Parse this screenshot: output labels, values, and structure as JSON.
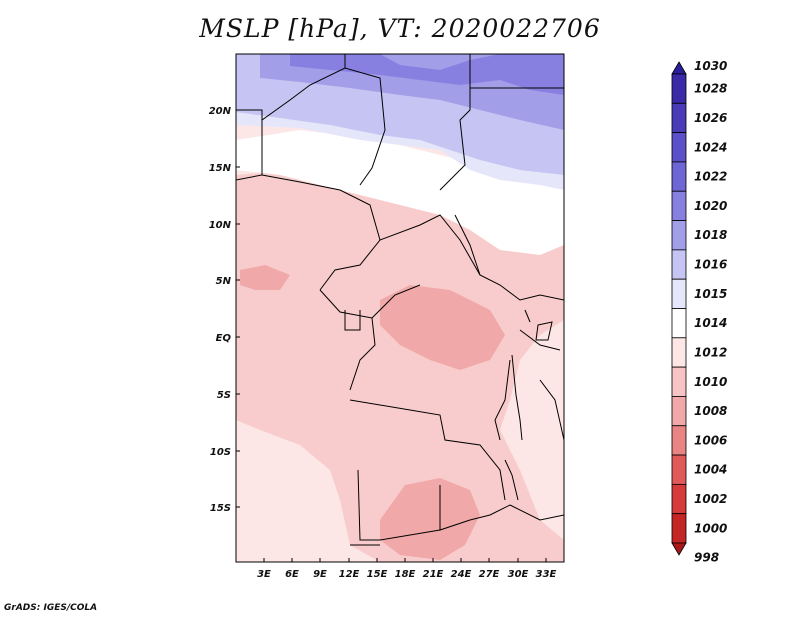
{
  "title": "MSLP [hPa], VT: 2020022706",
  "credit": "GrADS: IGES/COLA",
  "map": {
    "lat_labels": [
      "20N",
      "15N",
      "10N",
      "5N",
      "EQ",
      "5S",
      "10S",
      "15S"
    ],
    "lon_labels": [
      "3E",
      "6E",
      "9E",
      "12E",
      "15E",
      "18E",
      "21E",
      "24E",
      "27E",
      "30E",
      "33E"
    ]
  },
  "colorbar": {
    "levels": [
      "1030",
      "1028",
      "1026",
      "1024",
      "1022",
      "1020",
      "1018",
      "1016",
      "1015",
      "1014",
      "1012",
      "1010",
      "1008",
      "1006",
      "1004",
      "1002",
      "1000",
      "998"
    ],
    "colors": [
      "#2a1e9a",
      "#3a2aa8",
      "#4a3cb8",
      "#5c50c8",
      "#6f66d6",
      "#8880e0",
      "#a39ee8",
      "#c6c4f2",
      "#e6e6fa",
      "#ffffff",
      "#fde6e6",
      "#f6c4c4",
      "#f0a8a8",
      "#e88484",
      "#e05a5a",
      "#d63a3a",
      "#c42626",
      "#a81818"
    ]
  }
}
